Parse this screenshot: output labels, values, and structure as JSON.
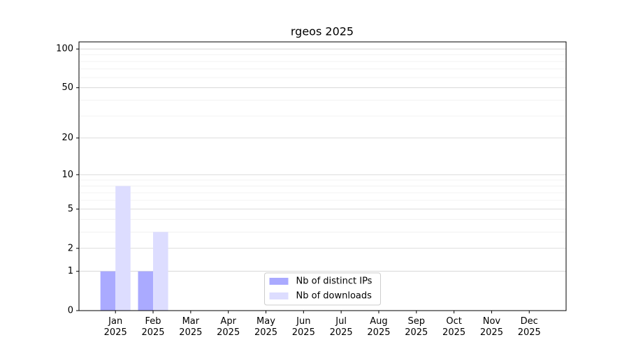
{
  "chart_data": {
    "type": "bar",
    "title": "rgeos 2025",
    "categories": [
      "Jan\n2025",
      "Feb\n2025",
      "Mar\n2025",
      "Apr\n2025",
      "May\n2025",
      "Jun\n2025",
      "Jul\n2025",
      "Aug\n2025",
      "Sep\n2025",
      "Oct\n2025",
      "Nov\n2025",
      "Dec\n2025"
    ],
    "series": [
      {
        "name": "Nb of distinct IPs",
        "color": "#aaaaff",
        "values": [
          1,
          1,
          null,
          null,
          null,
          null,
          null,
          null,
          null,
          null,
          null,
          null
        ]
      },
      {
        "name": "Nb of downloads",
        "color": "#ddddff",
        "values": [
          8,
          3,
          null,
          null,
          null,
          null,
          null,
          null,
          null,
          null,
          null,
          null
        ]
      }
    ],
    "yscale": "log1p",
    "ylim": [
      0,
      113.5
    ],
    "yticks": [
      0,
      1,
      2,
      5,
      10,
      20,
      50,
      100
    ],
    "minor_yticks": [
      3,
      4,
      6,
      7,
      8,
      9,
      30,
      40,
      60,
      70,
      80,
      90
    ],
    "grid": true,
    "legend": "lower center"
  }
}
